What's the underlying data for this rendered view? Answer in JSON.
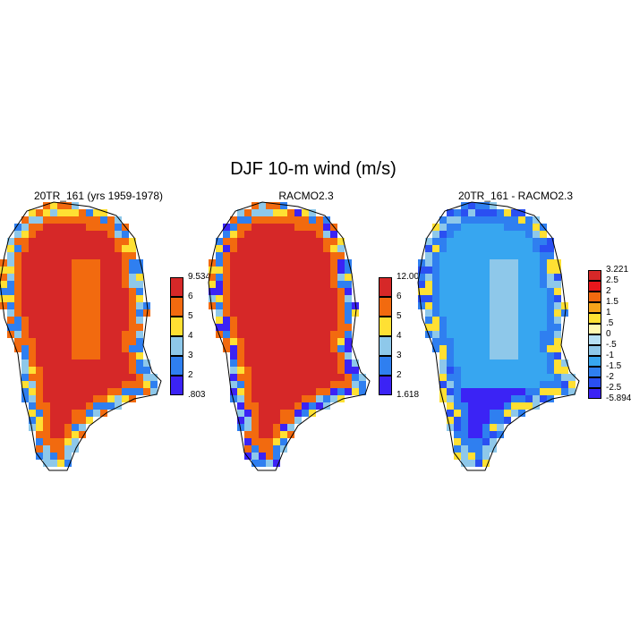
{
  "title": "DJF 10-m wind (m/s)",
  "panels": [
    {
      "title": "20TR_161 (yrs 1959-1978)",
      "colorbar": {
        "ticks": [
          "9.534",
          "6",
          "5",
          "4",
          "3",
          "2",
          ".803"
        ],
        "colors": [
          "#d62828",
          "#f26a0f",
          "#ffe033",
          "#8ec8ea",
          "#2f7ff0",
          "#3b23f5"
        ]
      },
      "field": {
        "interior": "#d62828",
        "core": "#f26a0f",
        "edge_levels": [
          "#f26a0f",
          "#ffe033",
          "#8ec8ea",
          "#2f7ff0"
        ]
      }
    },
    {
      "title": "RACMO2.3",
      "colorbar": {
        "ticks": [
          "12.003",
          "6",
          "5",
          "4",
          "3",
          "2",
          "1.618"
        ],
        "colors": [
          "#d62828",
          "#f26a0f",
          "#ffe033",
          "#8ec8ea",
          "#2f7ff0",
          "#3b23f5"
        ]
      },
      "field": {
        "interior": "#d62828",
        "core": "#d62828",
        "edge_levels": [
          "#f26a0f",
          "#ffe033",
          "#8ec8ea",
          "#2f7ff0",
          "#3b23f5"
        ]
      }
    },
    {
      "title": "20TR_161 - RACMO2.3",
      "colorbar": {
        "ticks": [
          "3.221",
          "2.5",
          "2",
          "1.5",
          "1",
          ".5",
          "0",
          "-.5",
          "-1",
          "-1.5",
          "-2",
          "-2.5",
          "-5.894"
        ],
        "colors": [
          "#d62828",
          "#e8171c",
          "#f26a0f",
          "#f7a41a",
          "#ffe033",
          "#fff8b0",
          "#b6e0f5",
          "#8ec8ea",
          "#37a6f0",
          "#2f7ff0",
          "#2a4ff2",
          "#3b23f5"
        ]
      },
      "field": {
        "interior": "#37a6f0",
        "core": "#8ec8ea",
        "edge_levels": [
          "#2f7ff0",
          "#2a4ff2",
          "#8ec8ea",
          "#ffe033"
        ]
      }
    }
  ]
}
